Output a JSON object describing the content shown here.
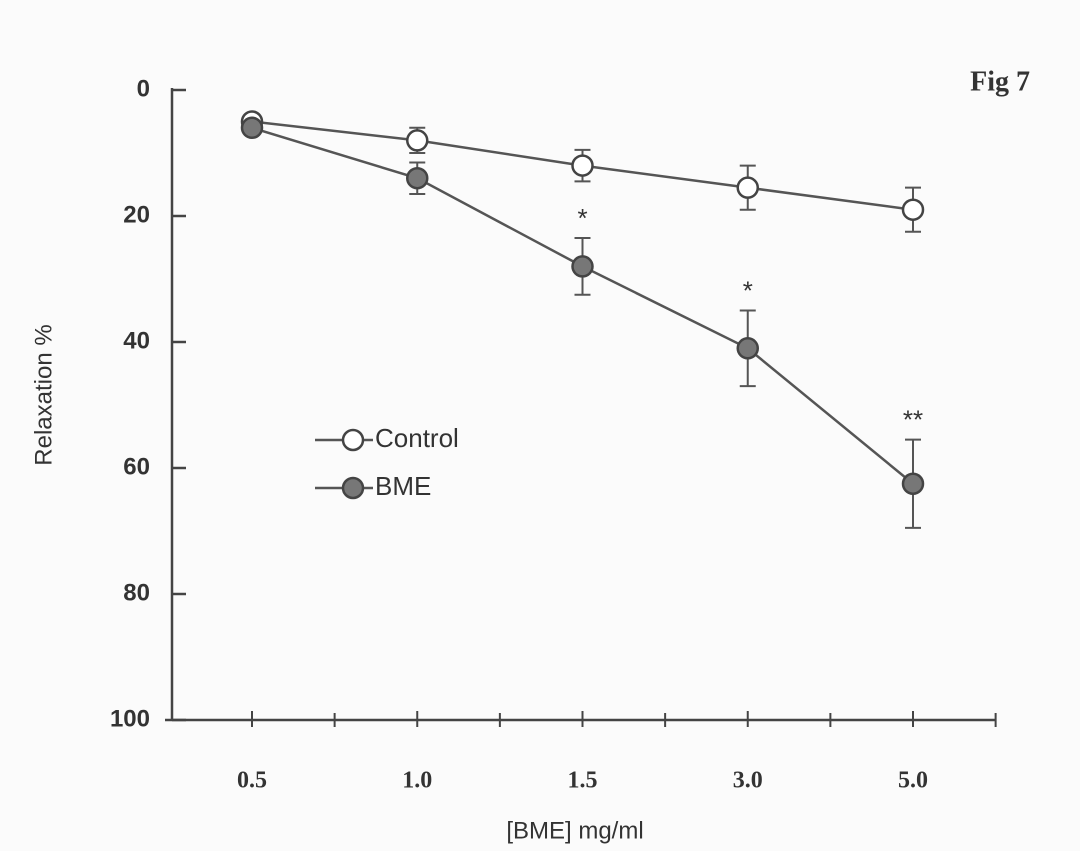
{
  "chart_data": {
    "type": "line",
    "title": "Fig 7",
    "x_label": "[BME] mg/ml",
    "y_label": "Relaxation %",
    "categories": [
      "0.5",
      "1.0",
      "1.5",
      "3.0",
      "5.0"
    ],
    "series": [
      {
        "name": "Control",
        "color": "#ffffff",
        "values": [
          5,
          8,
          12,
          15.5,
          19
        ],
        "errors": [
          1,
          2,
          2.5,
          3.5,
          3.5
        ]
      },
      {
        "name": "BME",
        "color": "#777777",
        "values": [
          6,
          14,
          28,
          41,
          62.5
        ],
        "errors": [
          1,
          2.5,
          4.5,
          6,
          7
        ]
      }
    ],
    "annotations": [
      {
        "text": "*",
        "x": "1.5"
      },
      {
        "text": "*",
        "x": "3.0"
      },
      {
        "text": "**",
        "x": "5.0"
      }
    ],
    "ylim": [
      100,
      0
    ],
    "yticks": [
      0,
      20,
      40,
      60,
      80,
      100
    ],
    "legend": "left"
  }
}
